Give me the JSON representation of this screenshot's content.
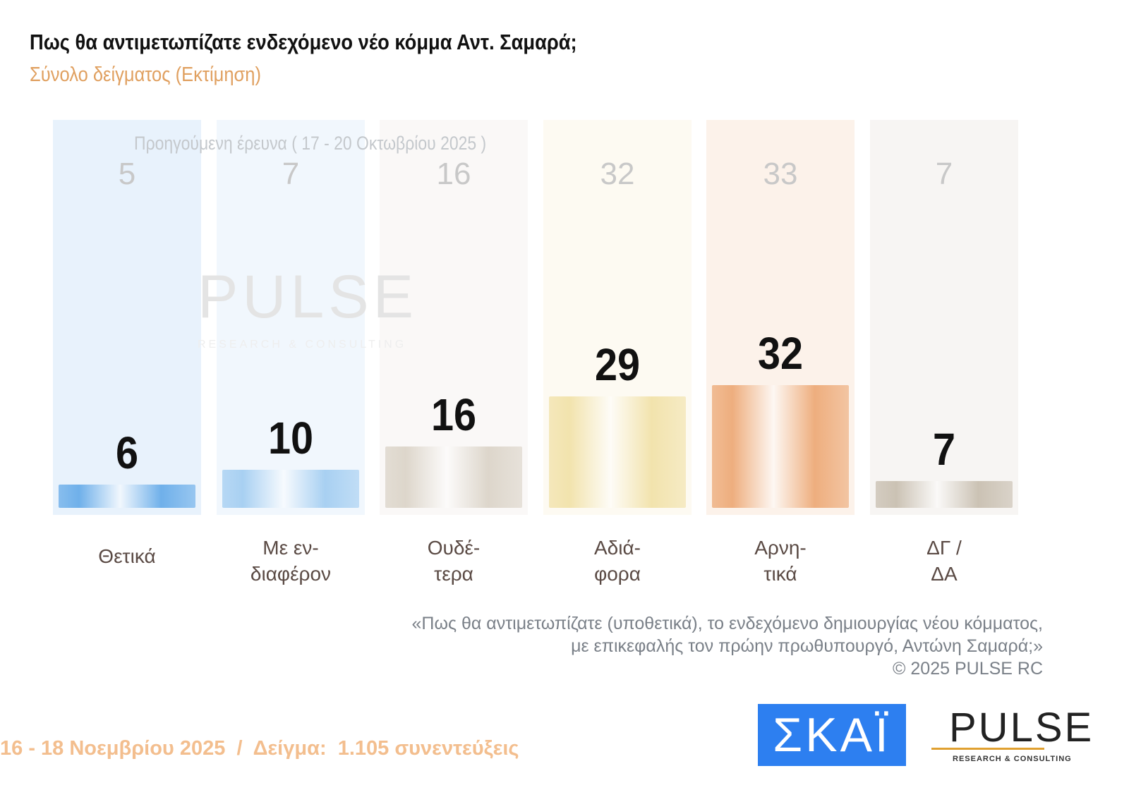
{
  "header": {
    "title": "Πως θα αντιμετωπίζατε ενδεχόμενο νέο κόμμα Αντ. Σαμαρά;",
    "subtitle": "Σύνολο δείγματος   (Εκτίμηση)"
  },
  "chart_data": {
    "type": "bar",
    "categories": [
      "Θετικά",
      "Με εν-\nδιαφέρον",
      "Ουδέ-\nτερα",
      "Αδιά-\nφορα",
      "Αρνη-\nτικά",
      "ΔΓ /\nΔΑ"
    ],
    "series": [
      {
        "name": "16 - 18 Νοεμβρίου 2025",
        "values": [
          6,
          10,
          16,
          29,
          32,
          7
        ]
      },
      {
        "name": "Προηγούμενη έρευνα ( 17 - 20 Οκτωβρίου 2025 )",
        "values": [
          5,
          7,
          16,
          32,
          33,
          7
        ]
      }
    ],
    "colors": [
      "#6fb0ea",
      "#a8d0f2",
      "#ddd6cb",
      "#f2e3ad",
      "#eeae7e",
      "#cbc2b4"
    ],
    "ylim": [
      0,
      35
    ],
    "previous_label": "Προηγούμενη έρευνα ( 17 - 20 Οκτωβρίου 2025 )"
  },
  "note": "«Πως θα αντιμετωπίζατε (υποθετικά), το ενδεχόμενο δημιουργίας νέου κόμματος,\nμε επικεφαλής τον πρώην πρωθυπουργό, Αντώνη Σαμαρά;»\n©  2025  PULSE RC",
  "footer": "16 - 18 Νοεμβρίου 2025  /  Δείγμα:  1.105 συνεντεύξεις",
  "logos": {
    "skai": "ΣΚΑΪ",
    "pulse": "PULSE",
    "pulse_sub": "RESEARCH & CONSULTING",
    "watermark": "PULSE",
    "watermark_sub": "RESEARCH & CONSULTING"
  }
}
